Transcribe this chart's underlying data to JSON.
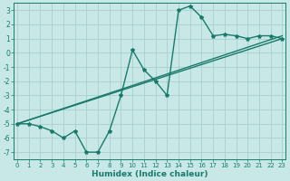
{
  "xlabel": "Humidex (Indice chaleur)",
  "ylabel": "",
  "background_color": "#c8e8e8",
  "line_color": "#1a7a6a",
  "grid_color": "#a8cece",
  "main_x": [
    0,
    1,
    2,
    3,
    4,
    5,
    6,
    7,
    8,
    9,
    10,
    11,
    12,
    13,
    14,
    15,
    16,
    17,
    18,
    19,
    20,
    21,
    22,
    23
  ],
  "main_y": [
    -5,
    -5,
    -5.2,
    -5.5,
    -6.0,
    -5.5,
    -7.0,
    -7.0,
    -5.5,
    -3.0,
    0.2,
    -1.2,
    -2.0,
    -3.0,
    3.0,
    3.3,
    2.5,
    1.2,
    1.3,
    1.2,
    1.0,
    1.2,
    1.2,
    1.0
  ],
  "line1_x": [
    0,
    23
  ],
  "line1_y": [
    -5.0,
    1.0
  ],
  "line2_x": [
    0,
    23
  ],
  "line2_y": [
    -5.0,
    1.2
  ],
  "xlim": [
    -0.3,
    23.3
  ],
  "ylim": [
    -7.5,
    3.5
  ],
  "yticks": [
    -7,
    -6,
    -5,
    -4,
    -3,
    -2,
    -1,
    0,
    1,
    2,
    3
  ],
  "xticks": [
    0,
    1,
    2,
    3,
    4,
    5,
    6,
    7,
    8,
    9,
    10,
    11,
    12,
    13,
    14,
    15,
    16,
    17,
    18,
    19,
    20,
    21,
    22,
    23
  ],
  "tick_fontsize": 5.0,
  "xlabel_fontsize": 6.5,
  "linewidth": 1.0,
  "marker_size": 3.0
}
